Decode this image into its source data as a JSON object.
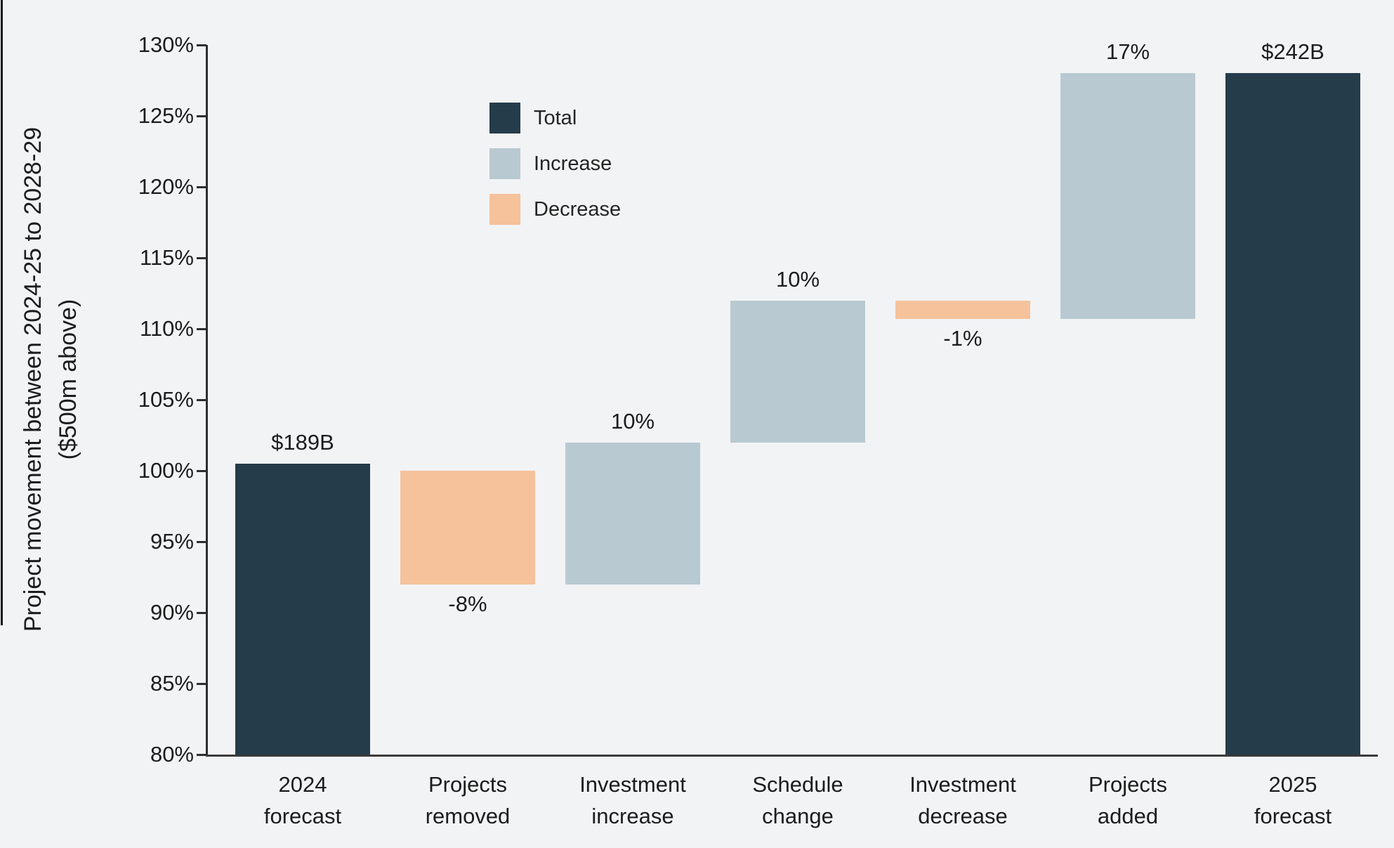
{
  "page": {
    "background": "#f2f3f5"
  },
  "chart_data": {
    "type": "bar",
    "subtype": "waterfall",
    "title": "",
    "y_axis": {
      "title_lines": [
        "Project movement between 2024-25 to 2028-29",
        "($500m above)"
      ],
      "min": 80,
      "max": 130,
      "tick_step": 5,
      "tick_suffix": "%",
      "tick_labels": [
        "130%",
        "125%",
        "120%",
        "115%",
        "110%",
        "105%",
        "100%",
        "95%",
        "90%",
        "85%",
        "80%"
      ],
      "gridlines": false
    },
    "legend": {
      "position": "top-left",
      "items": [
        {
          "label": "Total",
          "role": "total",
          "color": "#253c4b"
        },
        {
          "label": "Increase",
          "role": "increase",
          "color": "#b9c9d1"
        },
        {
          "label": "Decrease",
          "role": "decrease",
          "color": "#f5c29b"
        }
      ]
    },
    "bars": [
      {
        "category": "2024 forecast",
        "category_lines": [
          "2024",
          "forecast"
        ],
        "role": "total",
        "from": 80,
        "to": 100.5,
        "value_label": "$189B",
        "label_position": "above"
      },
      {
        "category": "Projects removed",
        "category_lines": [
          "Projects",
          "removed"
        ],
        "role": "decrease",
        "from": 100,
        "to": 92,
        "value_label": "-8%",
        "label_position": "below"
      },
      {
        "category": "Investment increase",
        "category_lines": [
          "Investment",
          "increase"
        ],
        "role": "increase",
        "from": 92,
        "to": 102,
        "value_label": "10%",
        "label_position": "above"
      },
      {
        "category": "Schedule change",
        "category_lines": [
          "Schedule",
          "change"
        ],
        "role": "increase",
        "from": 102,
        "to": 112,
        "value_label": "10%",
        "label_position": "above"
      },
      {
        "category": "Investment decrease",
        "category_lines": [
          "Investment",
          "decrease"
        ],
        "role": "decrease",
        "from": 112,
        "to": 110.7,
        "value_label": "-1%",
        "label_position": "below"
      },
      {
        "category": "Projects added",
        "category_lines": [
          "Projects",
          "added"
        ],
        "role": "increase",
        "from": 110.7,
        "to": 128,
        "value_label": "17%",
        "label_position": "above"
      },
      {
        "category": "2025 forecast",
        "category_lines": [
          "2025",
          "forecast"
        ],
        "role": "total",
        "from": 80,
        "to": 128,
        "value_label": "$242B",
        "label_position": "above"
      }
    ]
  }
}
